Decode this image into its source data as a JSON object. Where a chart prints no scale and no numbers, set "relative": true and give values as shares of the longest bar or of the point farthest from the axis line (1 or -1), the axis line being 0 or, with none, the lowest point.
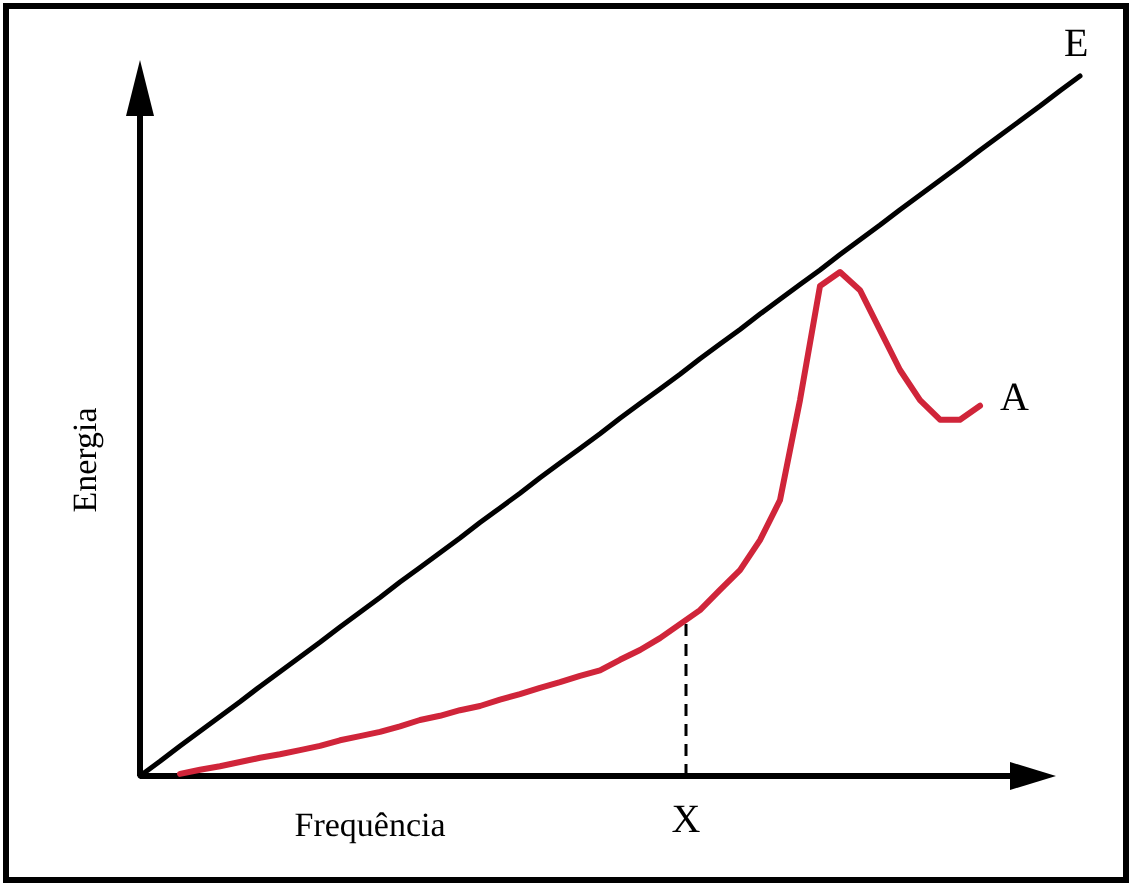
{
  "chart_data": {
    "type": "line",
    "relative": true,
    "xlabel": "Frequência",
    "ylabel": "Energia",
    "categories": [
      null,
      null,
      null,
      null,
      null,
      null,
      null,
      null,
      null,
      null,
      null,
      null,
      null,
      null,
      null,
      null,
      null,
      null,
      null,
      null,
      null,
      null,
      null,
      null,
      null,
      null,
      null,
      null,
      null,
      null,
      null,
      null,
      null,
      null,
      null,
      null,
      null,
      null,
      null,
      null,
      null,
      null,
      null,
      null,
      null,
      null,
      null,
      null
    ],
    "series": [
      {
        "name": "E",
        "color": "#000000",
        "values": [
          0,
          0.021,
          0.043,
          0.064,
          0.085,
          0.106,
          0.128,
          0.149,
          0.17,
          0.191,
          0.213,
          0.234,
          0.255,
          0.277,
          0.298,
          0.319,
          0.34,
          0.362,
          0.383,
          0.404,
          0.426,
          0.447,
          0.468,
          0.489,
          0.511,
          0.532,
          0.553,
          0.574,
          0.596,
          0.617,
          0.638,
          0.66,
          0.681,
          0.702,
          0.723,
          0.745,
          0.766,
          0.787,
          0.809,
          0.83,
          0.851,
          0.872,
          0.894,
          0.915,
          0.936,
          0.957,
          0.979,
          1
        ]
      },
      {
        "name": "A",
        "color": "#d0253a",
        "values": [
          null,
          null,
          0.003,
          0.009,
          0.014,
          0.02,
          0.026,
          0.031,
          0.037,
          0.043,
          0.051,
          0.057,
          0.063,
          0.071,
          0.08,
          0.086,
          0.094,
          0.1,
          0.109,
          0.117,
          0.126,
          0.134,
          0.143,
          0.151,
          0.166,
          0.18,
          0.197,
          0.217,
          0.237,
          0.266,
          0.294,
          0.337,
          0.394,
          0.537,
          0.7,
          0.72,
          0.694,
          0.637,
          0.58,
          0.537,
          0.509,
          0.509,
          0.529,
          null,
          null,
          null,
          null,
          null
        ]
      }
    ],
    "annotations": [
      {
        "text": "X",
        "y": 0.223
      }
    ]
  }
}
